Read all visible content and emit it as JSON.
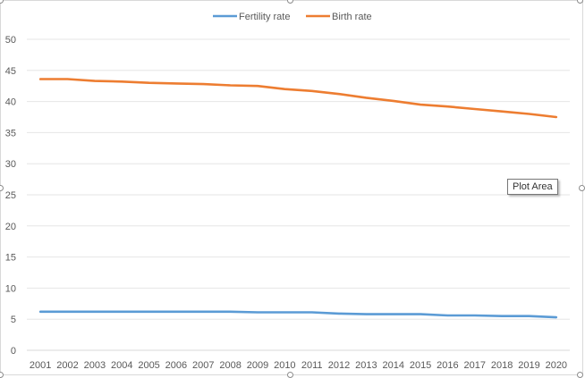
{
  "chart_data": {
    "type": "line",
    "title": "",
    "xlabel": "",
    "ylabel": "",
    "ylim": [
      0,
      50
    ],
    "yticks": [
      0,
      5,
      10,
      15,
      20,
      25,
      30,
      35,
      40,
      45,
      50
    ],
    "grid": true,
    "legend_position": "top",
    "x": [
      "2001",
      "2002",
      "2003",
      "2004",
      "2005",
      "2006",
      "2007",
      "2008",
      "2009",
      "2010",
      "2011",
      "2012",
      "2013",
      "2014",
      "2015",
      "2016",
      "2017",
      "2018",
      "2019",
      "2020"
    ],
    "series": [
      {
        "name": "Fertility rate",
        "color": "#5b9bd5",
        "values": [
          6.2,
          6.2,
          6.2,
          6.2,
          6.2,
          6.2,
          6.2,
          6.2,
          6.1,
          6.1,
          6.1,
          5.9,
          5.8,
          5.8,
          5.8,
          5.6,
          5.6,
          5.5,
          5.5,
          5.3
        ]
      },
      {
        "name": "Birth rate",
        "color": "#ed7d31",
        "values": [
          43.6,
          43.6,
          43.3,
          43.2,
          43.0,
          42.9,
          42.8,
          42.6,
          42.5,
          42.0,
          41.7,
          41.2,
          40.6,
          40.1,
          39.5,
          39.2,
          38.8,
          38.4,
          38.0,
          37.5
        ]
      }
    ]
  },
  "tooltip": {
    "text": "Plot Area"
  }
}
